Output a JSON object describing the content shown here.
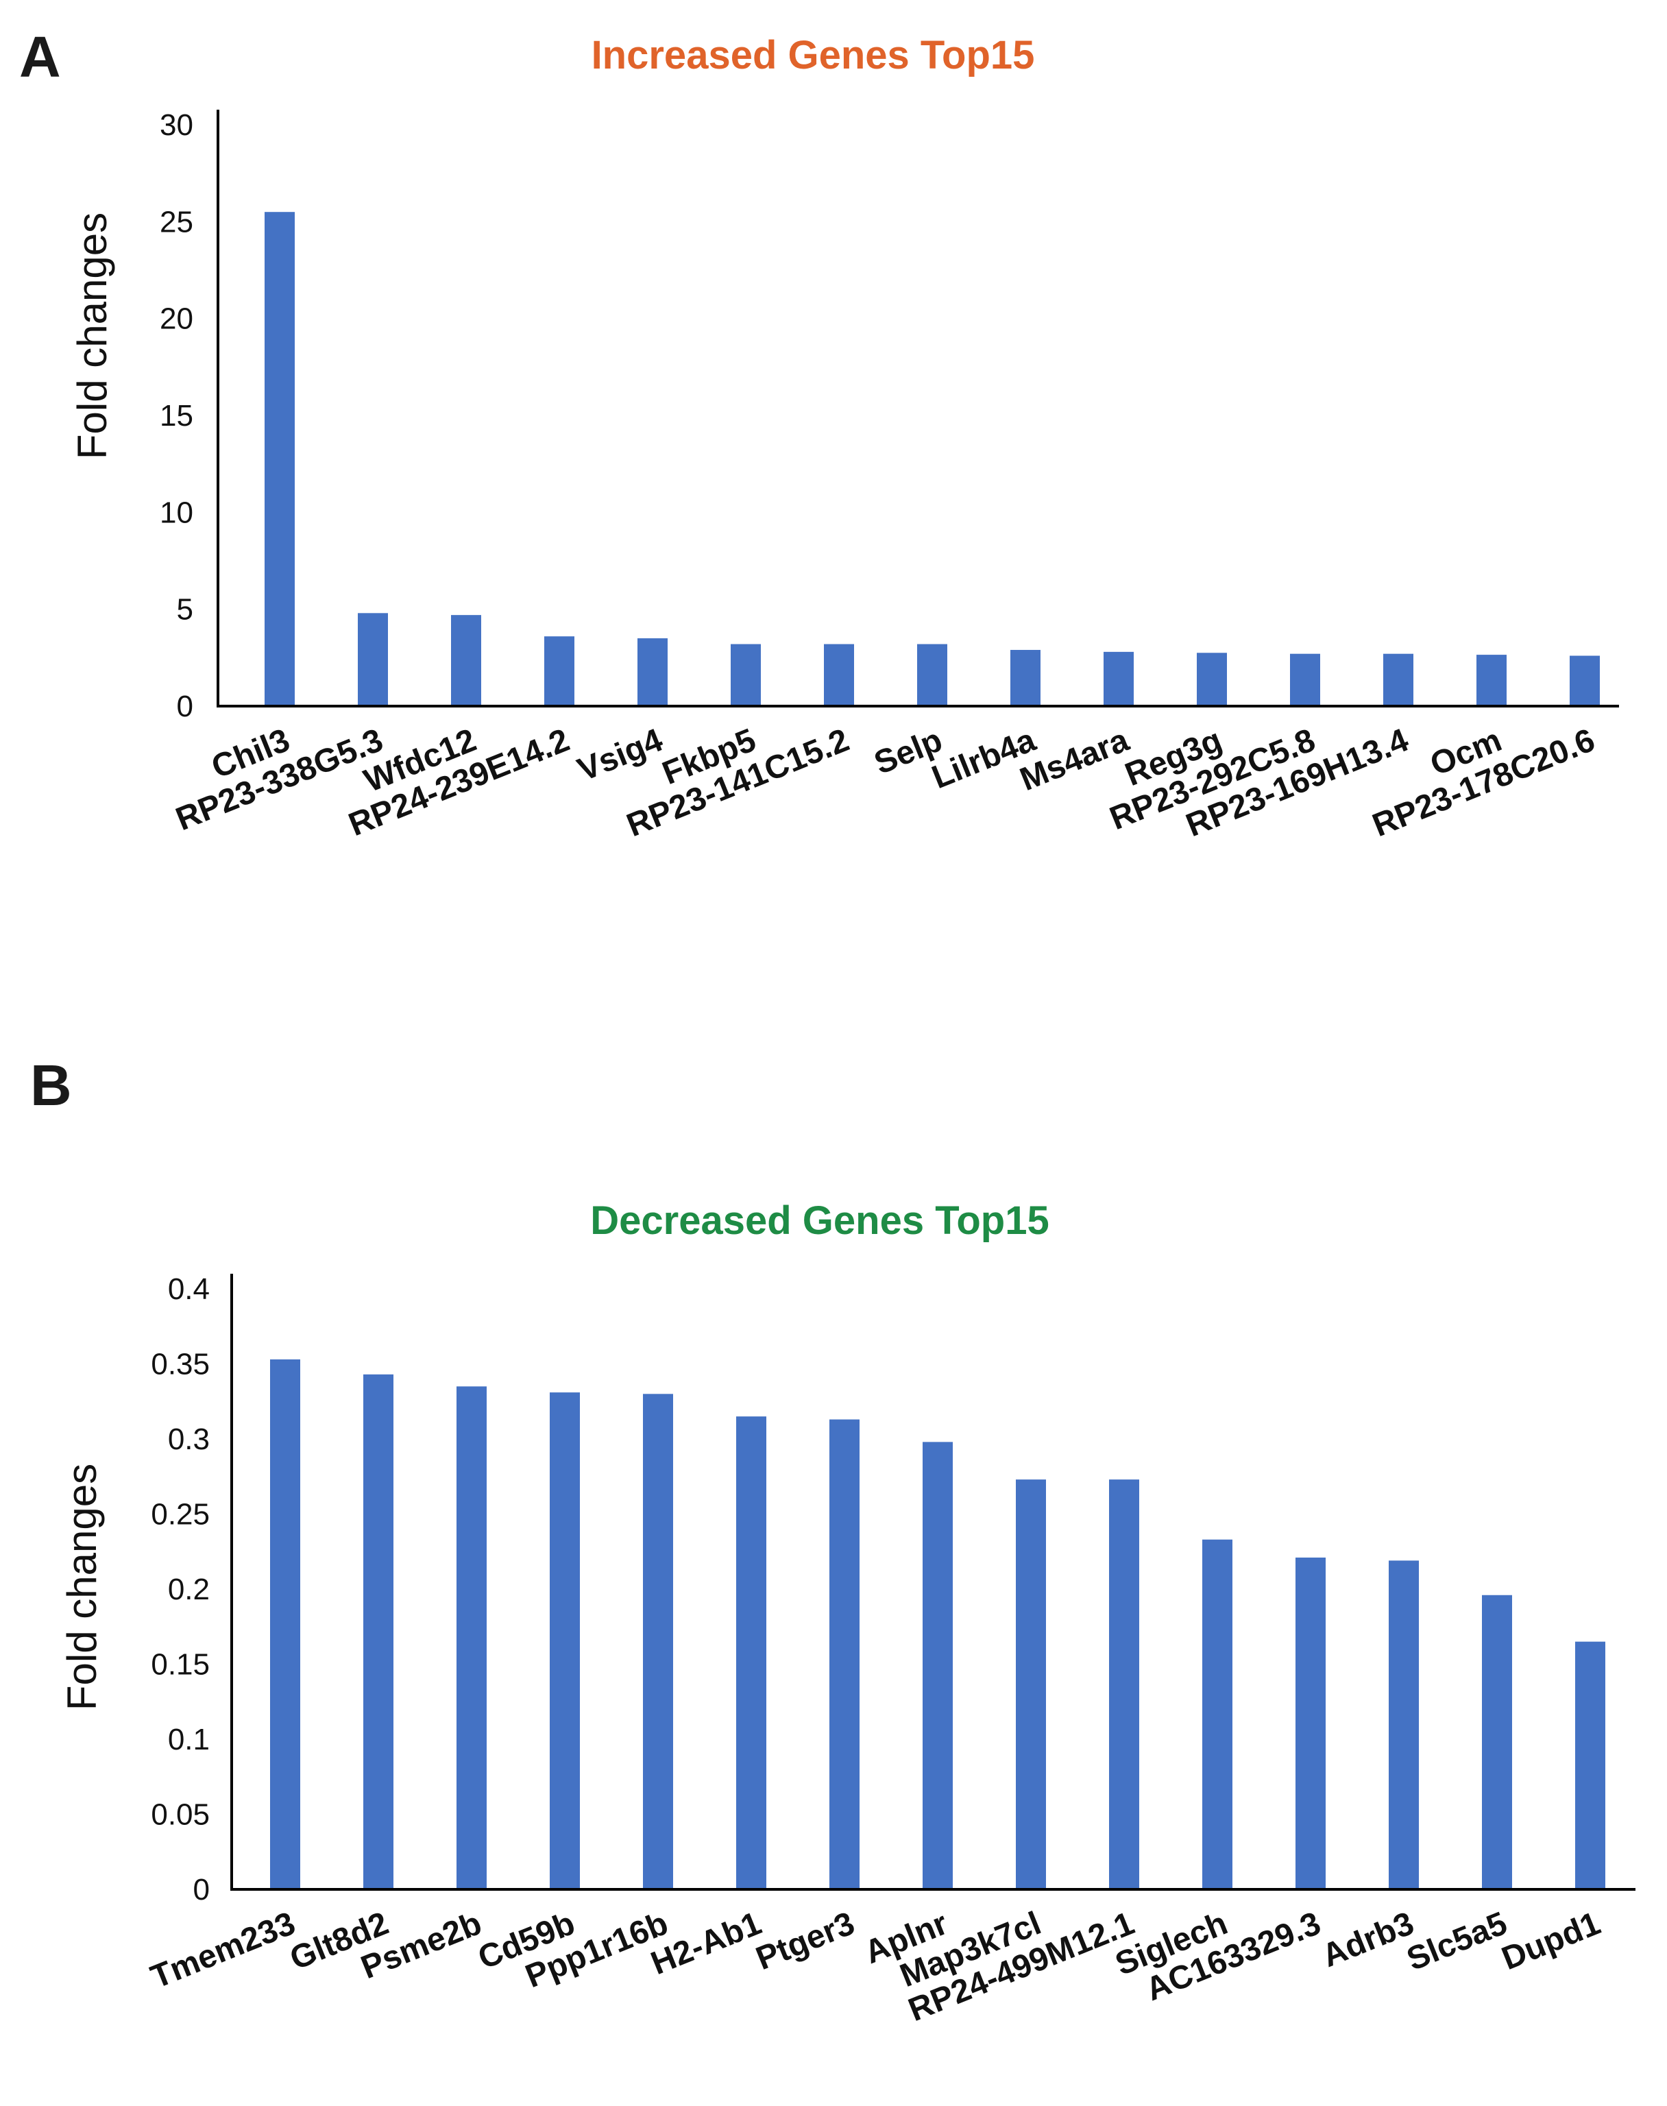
{
  "panels": {
    "a": {
      "letter": "A"
    },
    "b": {
      "letter": "B"
    }
  },
  "chart_data": [
    {
      "type": "bar",
      "title": "Increased Genes Top15",
      "title_color": "#e0632a",
      "bar_color": "#4472c4",
      "xlabel": "",
      "ylabel": "Fold changes",
      "ylim": [
        0,
        30
      ],
      "yticks": [
        "0",
        "5",
        "10",
        "15",
        "20",
        "25",
        "30"
      ],
      "categories": [
        "Chil3",
        "RP23-338G5.3",
        "Wfdc12",
        "RP24-239E14.2",
        "Vsig4",
        "Fkbp5",
        "RP23-141C15.2",
        "Selp",
        "Lilrb4a",
        "Ms4ara",
        "Reg3g",
        "RP23-292C5.8",
        "RP23-169H13.4",
        "Ocm",
        "RP23-178C20.6"
      ],
      "values": [
        25.5,
        4.8,
        4.7,
        3.6,
        3.5,
        3.2,
        3.2,
        3.2,
        2.9,
        2.8,
        2.75,
        2.7,
        2.7,
        2.65,
        2.6
      ]
    },
    {
      "type": "bar",
      "title": "Decreased Genes Top15",
      "title_color": "#1e8c45",
      "bar_color": "#4472c4",
      "xlabel": "",
      "ylabel": "Fold changes",
      "ylim": [
        0,
        0.4
      ],
      "yticks": [
        "0",
        "0.05",
        "0.1",
        "0.15",
        "0.2",
        "0.25",
        "0.3",
        "0.35",
        "0.4"
      ],
      "categories": [
        "Tmem233",
        "Glt8d2",
        "Psme2b",
        "Cd59b",
        "Ppp1r16b",
        "H2-Ab1",
        "Ptger3",
        "Aplnr",
        "Map3k7cl",
        "RP24-499M12.1",
        "Siglech",
        "AC163329.3",
        "Adrb3",
        "Slc5a5",
        "Dupd1"
      ],
      "values": [
        0.353,
        0.343,
        0.335,
        0.331,
        0.33,
        0.315,
        0.313,
        0.298,
        0.273,
        0.273,
        0.233,
        0.221,
        0.219,
        0.196,
        0.165
      ]
    }
  ]
}
